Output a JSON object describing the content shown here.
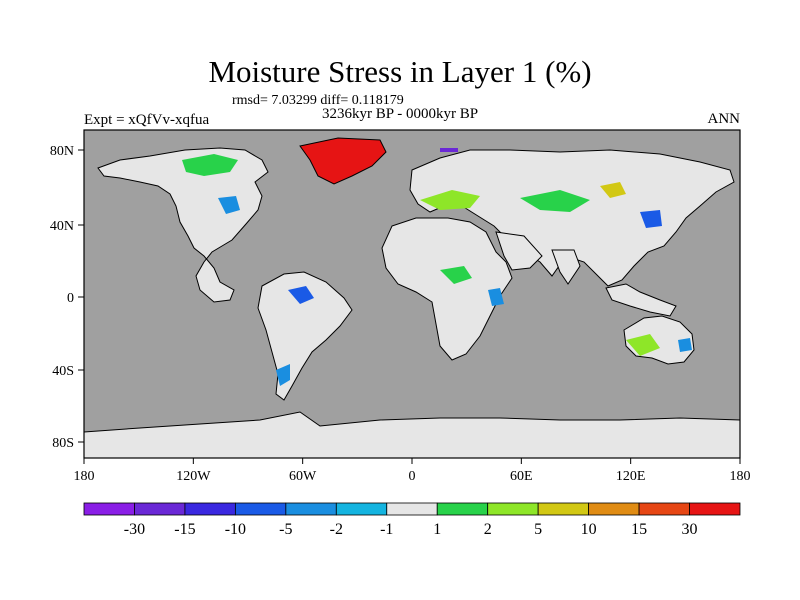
{
  "title": "Moisture Stress in Layer 1 (%)",
  "stats": "rmsd= 7.03299 diff= 0.118179",
  "period": "3236kyr BP - 0000kyr BP",
  "experiment": "Expt = xQfVv-xqfua",
  "season": "ANN",
  "axes": {
    "x_ticks": [
      "180",
      "120W",
      "60W",
      "0",
      "60E",
      "120E",
      "180"
    ],
    "y_ticks": [
      "80N",
      "40N",
      "0",
      "40S",
      "80S"
    ]
  },
  "colors": {
    "ocean": "#a0a0a0",
    "land_neutral": "#e6e6e6",
    "coastline": "#000000"
  },
  "legend": {
    "labels": [
      "-30",
      "-15",
      "-10",
      "-5",
      "-2",
      "-1",
      "1",
      "2",
      "5",
      "10",
      "15",
      "30"
    ],
    "colors": [
      "#8a1ee6",
      "#6a28d6",
      "#3a28e0",
      "#1a5ae6",
      "#1a8ee0",
      "#14b4e0",
      "#e6e6e6",
      "#28d24a",
      "#8ee628",
      "#d2c814",
      "#e08c14",
      "#e64614",
      "#e61414"
    ]
  }
}
